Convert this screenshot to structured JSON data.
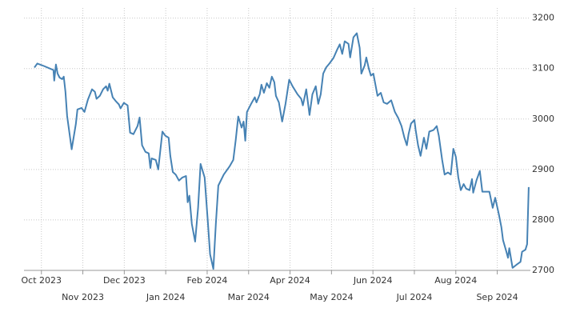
{
  "chart_data": {
    "type": "line",
    "xlim": [
      -0.42,
      11.8
    ],
    "xticks": [
      {
        "value": 0,
        "label": "Oct 2023"
      },
      {
        "value": 1,
        "label": "Nov 2023"
      },
      {
        "value": 2,
        "label": "Dec 2023"
      },
      {
        "value": 3,
        "label": "Jan 2024"
      },
      {
        "value": 4,
        "label": "Feb 2024"
      },
      {
        "value": 5,
        "label": "Mar 2024"
      },
      {
        "value": 6,
        "label": "Apr 2024"
      },
      {
        "value": 7,
        "label": "May 2024"
      },
      {
        "value": 8,
        "label": "Jun 2024"
      },
      {
        "value": 9,
        "label": "Jul 2024"
      },
      {
        "value": 10,
        "label": "Aug 2024"
      },
      {
        "value": 11,
        "label": "Sep 2024"
      }
    ],
    "ylim": [
      2700,
      3220
    ],
    "yticks": [
      2700,
      2800,
      2900,
      3000,
      3100,
      3200
    ],
    "grid": true,
    "color": "#4682b4",
    "x": [
      -0.17,
      -0.1,
      0.06,
      0.29,
      0.31,
      0.35,
      0.39,
      0.44,
      0.5,
      0.54,
      0.58,
      0.62,
      0.73,
      0.83,
      0.87,
      0.97,
      1.04,
      1.12,
      1.22,
      1.29,
      1.33,
      1.41,
      1.49,
      1.56,
      1.6,
      1.64,
      1.72,
      1.8,
      1.87,
      1.91,
      1.99,
      2.08,
      2.14,
      2.22,
      2.32,
      2.37,
      2.43,
      2.51,
      2.59,
      2.63,
      2.66,
      2.76,
      2.82,
      2.92,
      2.99,
      3.07,
      3.11,
      3.17,
      3.24,
      3.32,
      3.4,
      3.49,
      3.53,
      3.57,
      3.63,
      3.71,
      3.78,
      3.84,
      3.94,
      4.02,
      4.07,
      4.15,
      4.21,
      4.27,
      4.4,
      4.54,
      4.63,
      4.69,
      4.75,
      4.83,
      4.88,
      4.92,
      4.96,
      5.06,
      5.15,
      5.19,
      5.27,
      5.31,
      5.37,
      5.44,
      5.5,
      5.56,
      5.62,
      5.66,
      5.73,
      5.81,
      5.89,
      5.98,
      6.06,
      6.18,
      6.27,
      6.31,
      6.39,
      6.47,
      6.54,
      6.62,
      6.68,
      6.74,
      6.8,
      6.87,
      6.95,
      7.05,
      7.14,
      7.2,
      7.26,
      7.32,
      7.41,
      7.45,
      7.53,
      7.61,
      7.68,
      7.72,
      7.8,
      7.84,
      7.9,
      7.95,
      8.01,
      8.11,
      8.19,
      8.26,
      8.34,
      8.44,
      8.53,
      8.61,
      8.69,
      8.76,
      8.82,
      8.86,
      8.92,
      9.0,
      9.03,
      9.09,
      9.15,
      9.23,
      9.29,
      9.36,
      9.46,
      9.54,
      9.59,
      9.67,
      9.73,
      9.81,
      9.88,
      9.94,
      10.0,
      10.06,
      10.12,
      10.19,
      10.25,
      10.33,
      10.39,
      10.42,
      10.5,
      10.58,
      10.64,
      10.73,
      10.81,
      10.89,
      10.95,
      11.04,
      11.1,
      11.14,
      11.22,
      11.26,
      11.29,
      11.37,
      11.46,
      11.56,
      11.6,
      11.68,
      11.72,
      11.76
    ],
    "values": [
      3102,
      3110,
      3105,
      3097,
      3076,
      3108,
      3090,
      3082,
      3079,
      3084,
      3054,
      3006,
      2940,
      2990,
      3019,
      3022,
      3014,
      3038,
      3059,
      3054,
      3040,
      3046,
      3059,
      3065,
      3056,
      3070,
      3043,
      3035,
      3029,
      3021,
      3032,
      3027,
      2973,
      2970,
      2986,
      3003,
      2948,
      2935,
      2932,
      2903,
      2922,
      2919,
      2900,
      2975,
      2967,
      2963,
      2927,
      2895,
      2890,
      2878,
      2884,
      2887,
      2835,
      2848,
      2792,
      2757,
      2824,
      2911,
      2884,
      2792,
      2732,
      2703,
      2792,
      2868,
      2890,
      2906,
      2919,
      2959,
      3005,
      2983,
      2995,
      2957,
      3014,
      3030,
      3043,
      3033,
      3049,
      3068,
      3052,
      3071,
      3062,
      3084,
      3073,
      3046,
      3033,
      2995,
      3030,
      3078,
      3065,
      3049,
      3040,
      3027,
      3059,
      3008,
      3049,
      3065,
      3030,
      3049,
      3090,
      3102,
      3110,
      3121,
      3138,
      3148,
      3129,
      3154,
      3149,
      3122,
      3162,
      3170,
      3141,
      3090,
      3106,
      3122,
      3100,
      3086,
      3090,
      3046,
      3052,
      3033,
      3030,
      3037,
      3014,
      3002,
      2986,
      2963,
      2948,
      2970,
      2991,
      2998,
      2979,
      2948,
      2927,
      2963,
      2941,
      2975,
      2978,
      2986,
      2967,
      2919,
      2890,
      2894,
      2890,
      2941,
      2925,
      2884,
      2859,
      2871,
      2862,
      2859,
      2881,
      2854,
      2879,
      2897,
      2856,
      2856,
      2856,
      2824,
      2844,
      2811,
      2786,
      2760,
      2737,
      2725,
      2744,
      2705,
      2711,
      2717,
      2737,
      2741,
      2752,
      2865
    ]
  }
}
